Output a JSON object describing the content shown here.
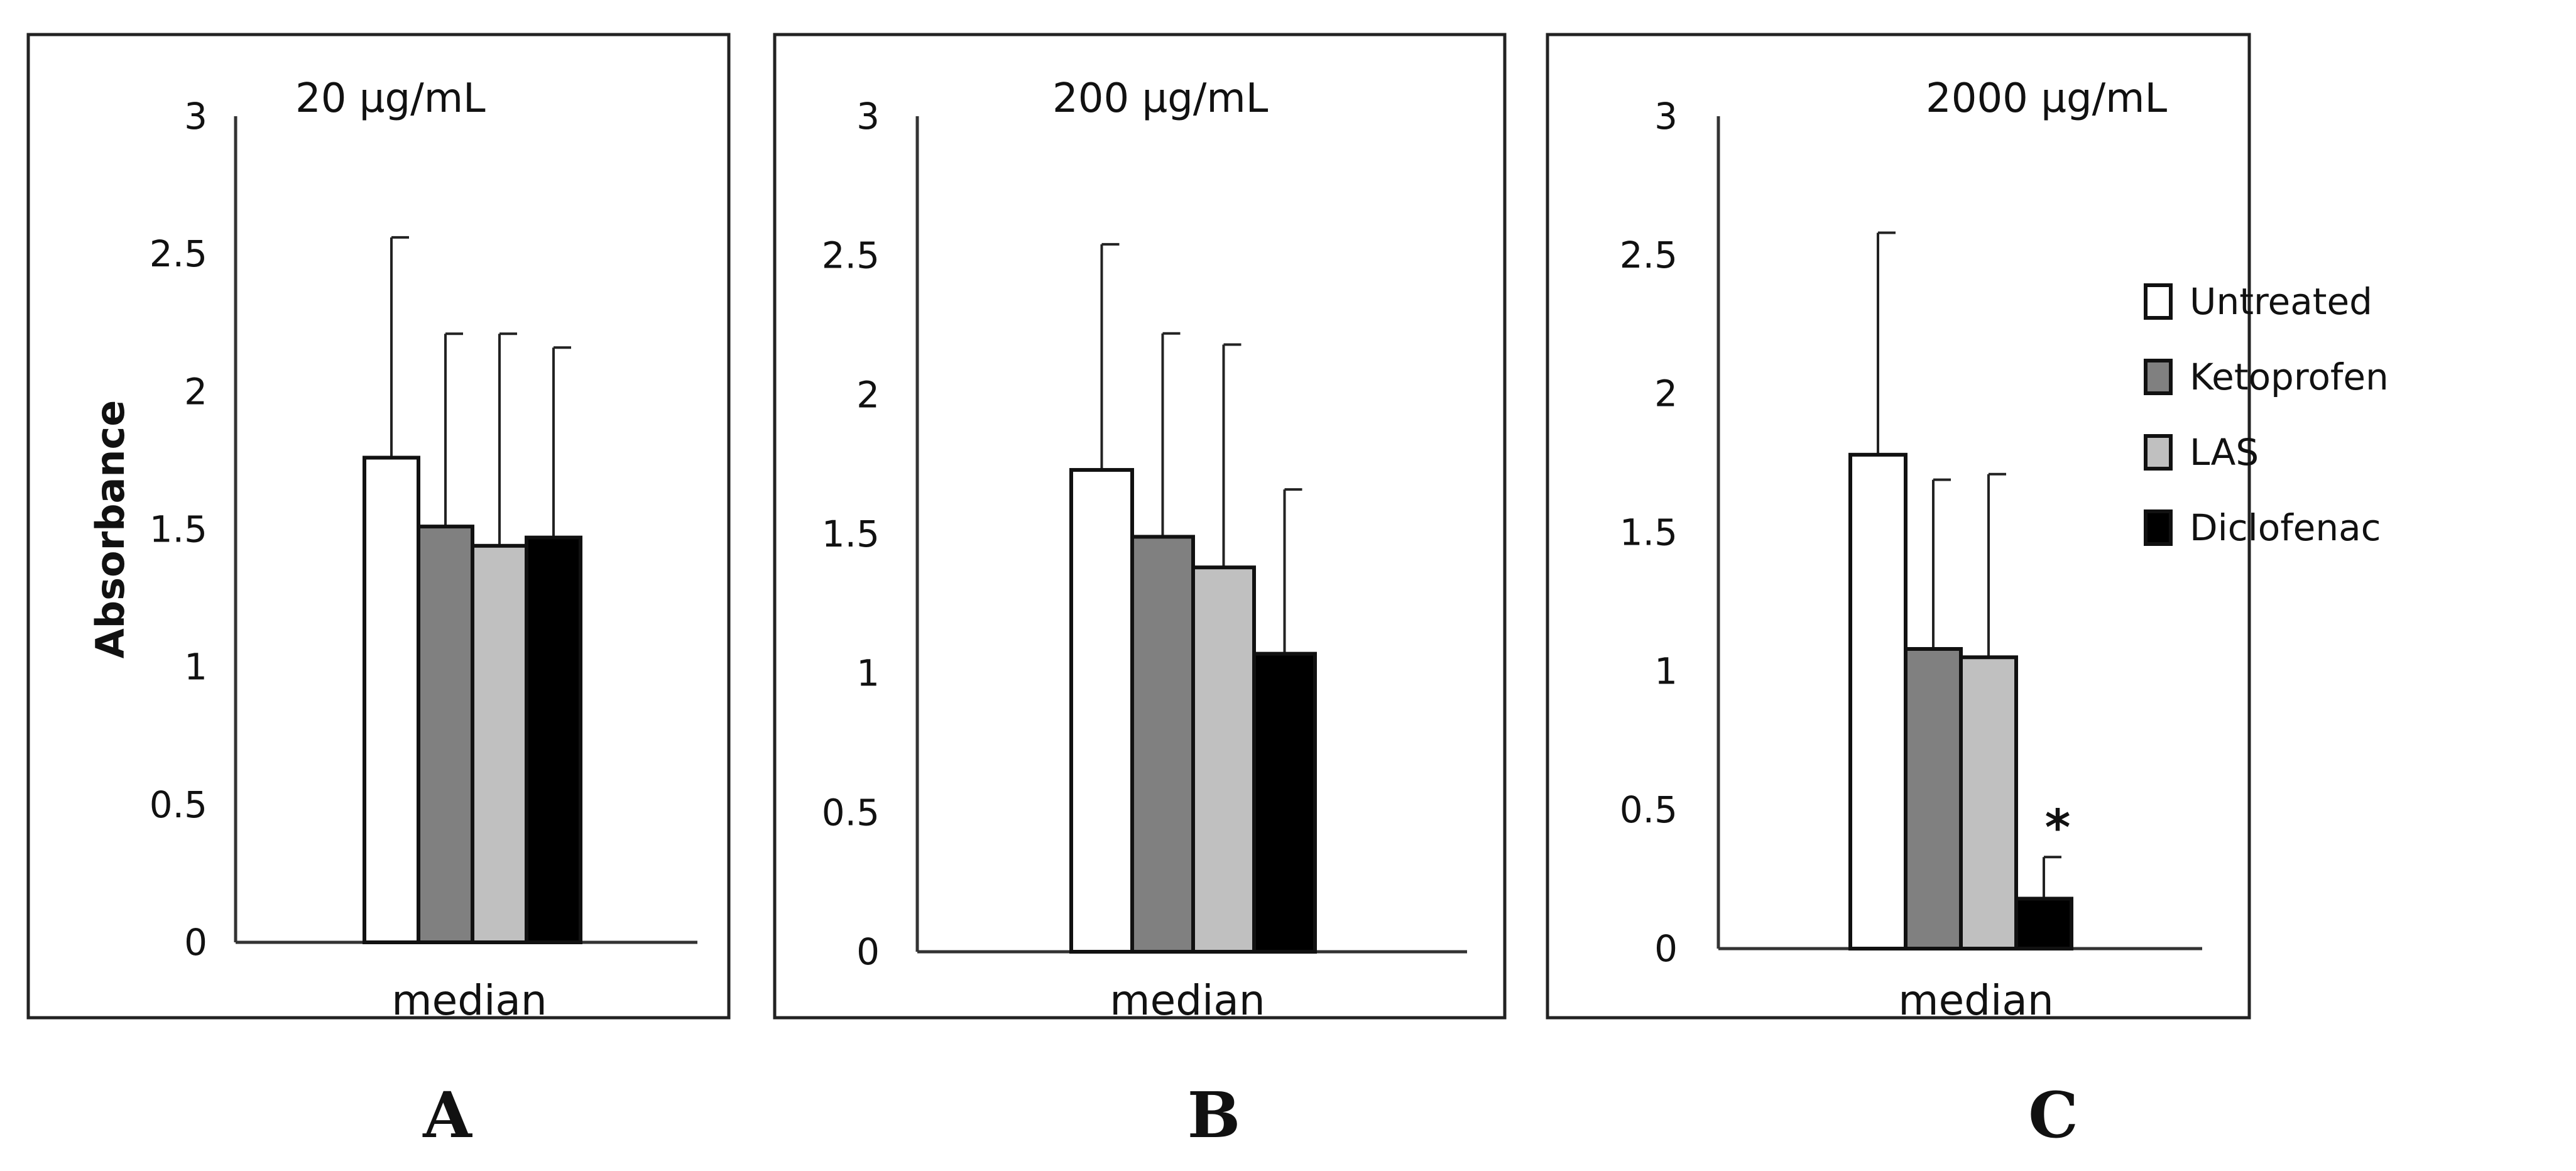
{
  "chart_data": [
    {
      "type": "bar",
      "panel": "A",
      "title": "20 µg/mL",
      "ylabel": "Absorbance",
      "xlabel": "median",
      "categories": [
        "median"
      ],
      "ylim": [
        0,
        3
      ],
      "yticks": [
        "0",
        "0.5",
        "1",
        "1.5",
        "2",
        "2.5",
        "3"
      ],
      "series": [
        {
          "name": "Untreated",
          "values": [
            1.76
          ],
          "error": [
            0.8
          ]
        },
        {
          "name": "Ketoprofen",
          "values": [
            1.51
          ],
          "error": [
            0.7
          ]
        },
        {
          "name": "LAS",
          "values": [
            1.44
          ],
          "error": [
            0.77
          ]
        },
        {
          "name": "Diclofenac",
          "values": [
            1.47
          ],
          "error": [
            0.69
          ]
        }
      ],
      "significance": []
    },
    {
      "type": "bar",
      "panel": "B",
      "title": "200 µg/mL",
      "xlabel": "median",
      "categories": [
        "median"
      ],
      "ylim": [
        0,
        3
      ],
      "yticks": [
        "0",
        "0.5",
        "1",
        "1.5",
        "2",
        "2.5",
        "3"
      ],
      "series": [
        {
          "name": "Untreated",
          "values": [
            1.73
          ],
          "error": [
            0.81
          ]
        },
        {
          "name": "Ketoprofen",
          "values": [
            1.49
          ],
          "error": [
            0.73
          ]
        },
        {
          "name": "LAS",
          "values": [
            1.38
          ],
          "error": [
            0.8
          ]
        },
        {
          "name": "Diclofenac",
          "values": [
            1.07
          ],
          "error": [
            0.59
          ]
        }
      ],
      "significance": []
    },
    {
      "type": "bar",
      "panel": "C",
      "title": "2000 µg/mL",
      "xlabel": "median",
      "categories": [
        "median"
      ],
      "ylim": [
        0,
        3
      ],
      "yticks": [
        "0",
        "0.5",
        "1",
        "1.5",
        "2",
        "2.5",
        "3"
      ],
      "series": [
        {
          "name": "Untreated",
          "values": [
            1.78
          ],
          "error": [
            0.8
          ]
        },
        {
          "name": "Ketoprofen",
          "values": [
            1.08
          ],
          "error": [
            0.61
          ]
        },
        {
          "name": "LAS",
          "values": [
            1.05
          ],
          "error": [
            0.66
          ]
        },
        {
          "name": "Diclofenac",
          "values": [
            0.18
          ],
          "error": [
            0.15
          ]
        }
      ],
      "significance": [
        {
          "series": "Diclofenac",
          "mark": "*"
        }
      ],
      "legend": {
        "placement": "right",
        "entries": [
          "Untreated",
          "Ketoprofen",
          "LAS",
          "Diclofenac"
        ]
      }
    }
  ],
  "colors": {
    "Untreated": "#ffffff",
    "Ketoprofen": "#808080",
    "LAS": "#c0c0c0",
    "Diclofenac": "#000000",
    "frame": "#222222"
  }
}
